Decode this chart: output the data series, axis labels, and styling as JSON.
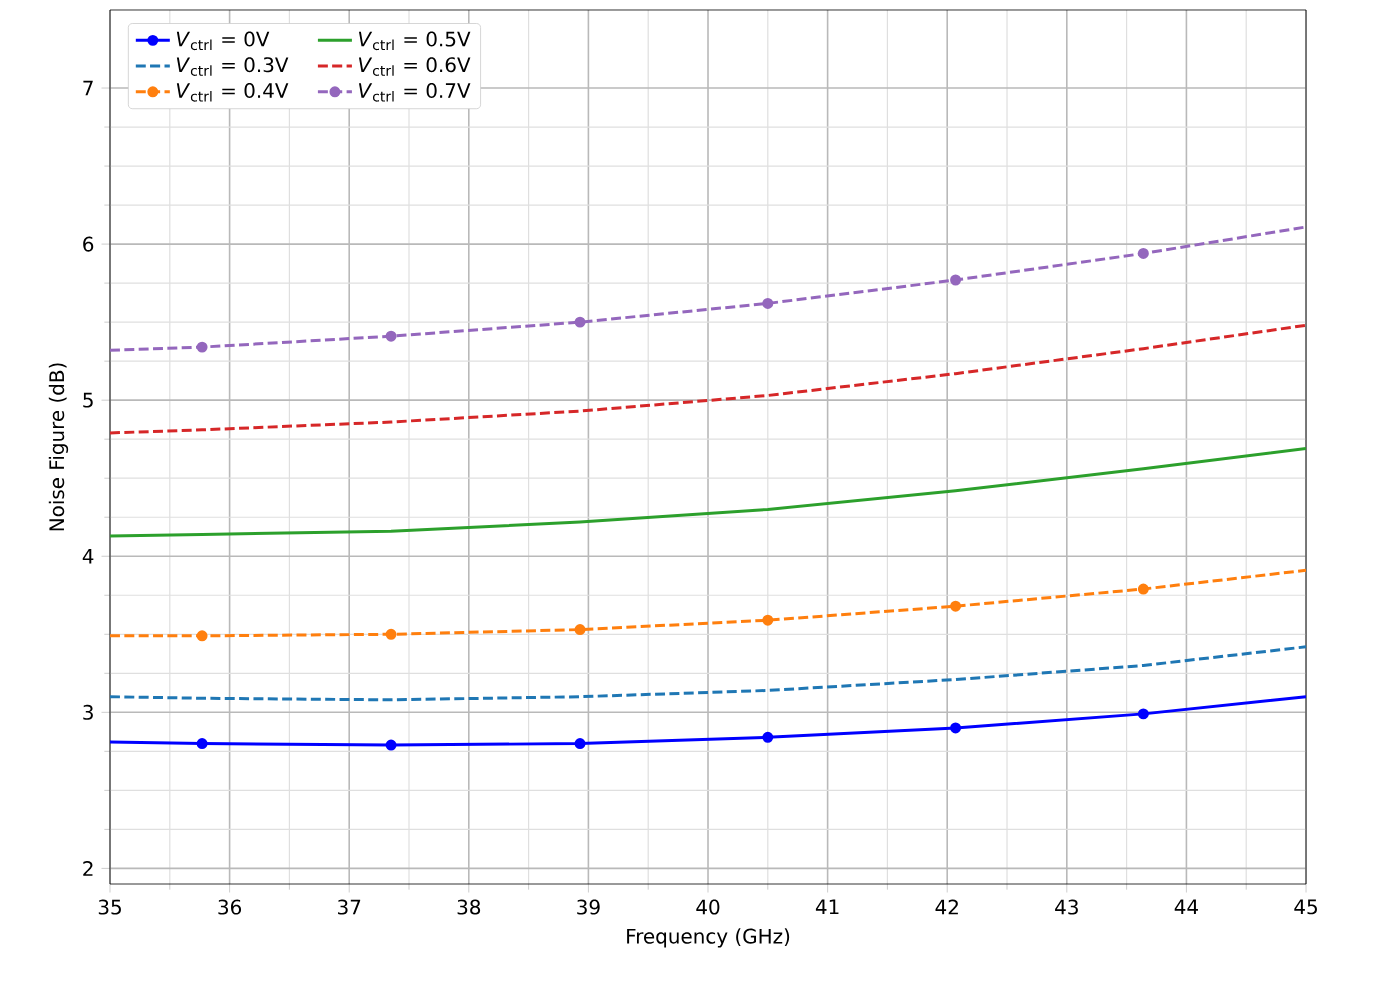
{
  "chart_data": {
    "type": "line",
    "xlabel": "Frequency (GHz)",
    "ylabel": "Noise Figure (dB)",
    "x": [
      35,
      35.77,
      37.35,
      38.93,
      40.5,
      42.07,
      43.64,
      45
    ],
    "xlim": [
      35,
      45
    ],
    "ylim": [
      1.9,
      7.5
    ],
    "xticks": [
      35,
      36,
      37,
      38,
      39,
      40,
      41,
      42,
      43,
      44,
      45
    ],
    "yticks": [
      2,
      3,
      4,
      5,
      6,
      7
    ],
    "grid": true,
    "legend": "top left",
    "series": [
      {
        "name": "*V*$_{ctrl}$ = 0V",
        "color": "#0000ff",
        "line_style": "solid",
        "marker": "circle",
        "values": [
          2.81,
          2.8,
          2.79,
          2.8,
          2.84,
          2.9,
          2.99,
          3.1
        ]
      },
      {
        "name": "*V*$_{ctrl}$ = 0.3V",
        "color": "#1f77b4",
        "line_style": "dashed",
        "marker": "none",
        "values": [
          3.1,
          3.09,
          3.08,
          3.1,
          3.14,
          3.21,
          3.3,
          3.42
        ]
      },
      {
        "name": "*V*$_{ctrl}$ = 0.4V",
        "color": "#ff7f0e",
        "line_style": "dashed",
        "marker": "circle",
        "values": [
          3.49,
          3.49,
          3.5,
          3.53,
          3.59,
          3.68,
          3.79,
          3.91
        ]
      },
      {
        "name": "*V*$_{ctrl}$ = 0.5V",
        "color": "#2ca02c",
        "line_style": "solid",
        "marker": "none",
        "values": [
          4.13,
          4.14,
          4.16,
          4.22,
          4.3,
          4.42,
          4.56,
          4.69
        ]
      },
      {
        "name": "*V*$_{ctrl}$ = 0.6V",
        "color": "#d62728",
        "line_style": "dashed",
        "marker": "none",
        "values": [
          4.79,
          4.81,
          4.86,
          4.93,
          5.03,
          5.17,
          5.33,
          5.48
        ]
      },
      {
        "name": "*V*$_{ctrl}$ = 0.7V",
        "color": "#9467bd",
        "line_style": "dashed",
        "marker": "circle",
        "values": [
          5.32,
          5.34,
          5.41,
          5.5,
          5.62,
          5.77,
          5.94,
          6.11
        ]
      }
    ]
  }
}
